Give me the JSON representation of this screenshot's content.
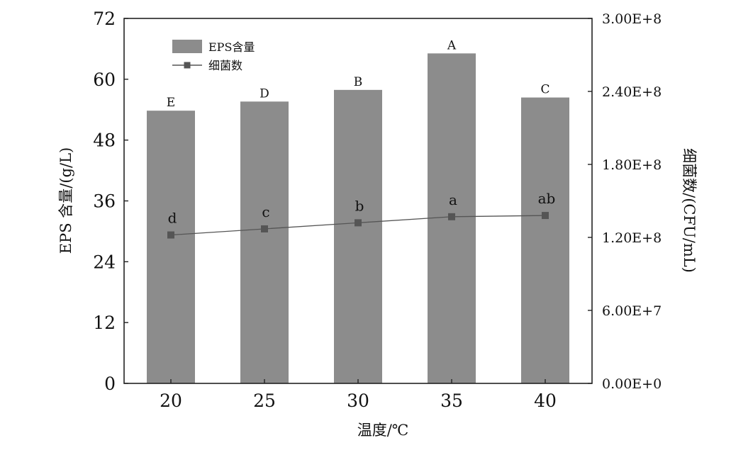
{
  "chart_data": {
    "type": "bar",
    "categories": [
      "20",
      "25",
      "30",
      "35",
      "40"
    ],
    "xlabel": "温度/℃",
    "ylabel_left": "EPS 含量/(g/L)",
    "ylabel_right": "细菌数/(CFU/mL)",
    "ylim_left": [
      0,
      72
    ],
    "ylim_right": [
      0,
      300000000
    ],
    "yticks_left": [
      "0",
      "12",
      "24",
      "36",
      "48",
      "60",
      "72"
    ],
    "yticks_right": [
      "0.00E+0",
      "6.00E+7",
      "1.20E+8",
      "1.80E+8",
      "2.40E+8",
      "3.00E+8"
    ],
    "grid": false,
    "legend_position": "top-left",
    "series": [
      {
        "name": "EPS含量",
        "kind": "bar",
        "axis": "left",
        "values": [
          53.8,
          55.6,
          57.9,
          65.1,
          56.4
        ],
        "labels": [
          "E",
          "D",
          "B",
          "A",
          "C"
        ],
        "color": "#8c8c8c"
      },
      {
        "name": "细菌数",
        "kind": "line",
        "axis": "right",
        "values": [
          122000000,
          127000000,
          132000000,
          137000000,
          138000000
        ],
        "labels": [
          "d",
          "c",
          "b",
          "a",
          "ab"
        ],
        "color": "#555555"
      }
    ]
  }
}
